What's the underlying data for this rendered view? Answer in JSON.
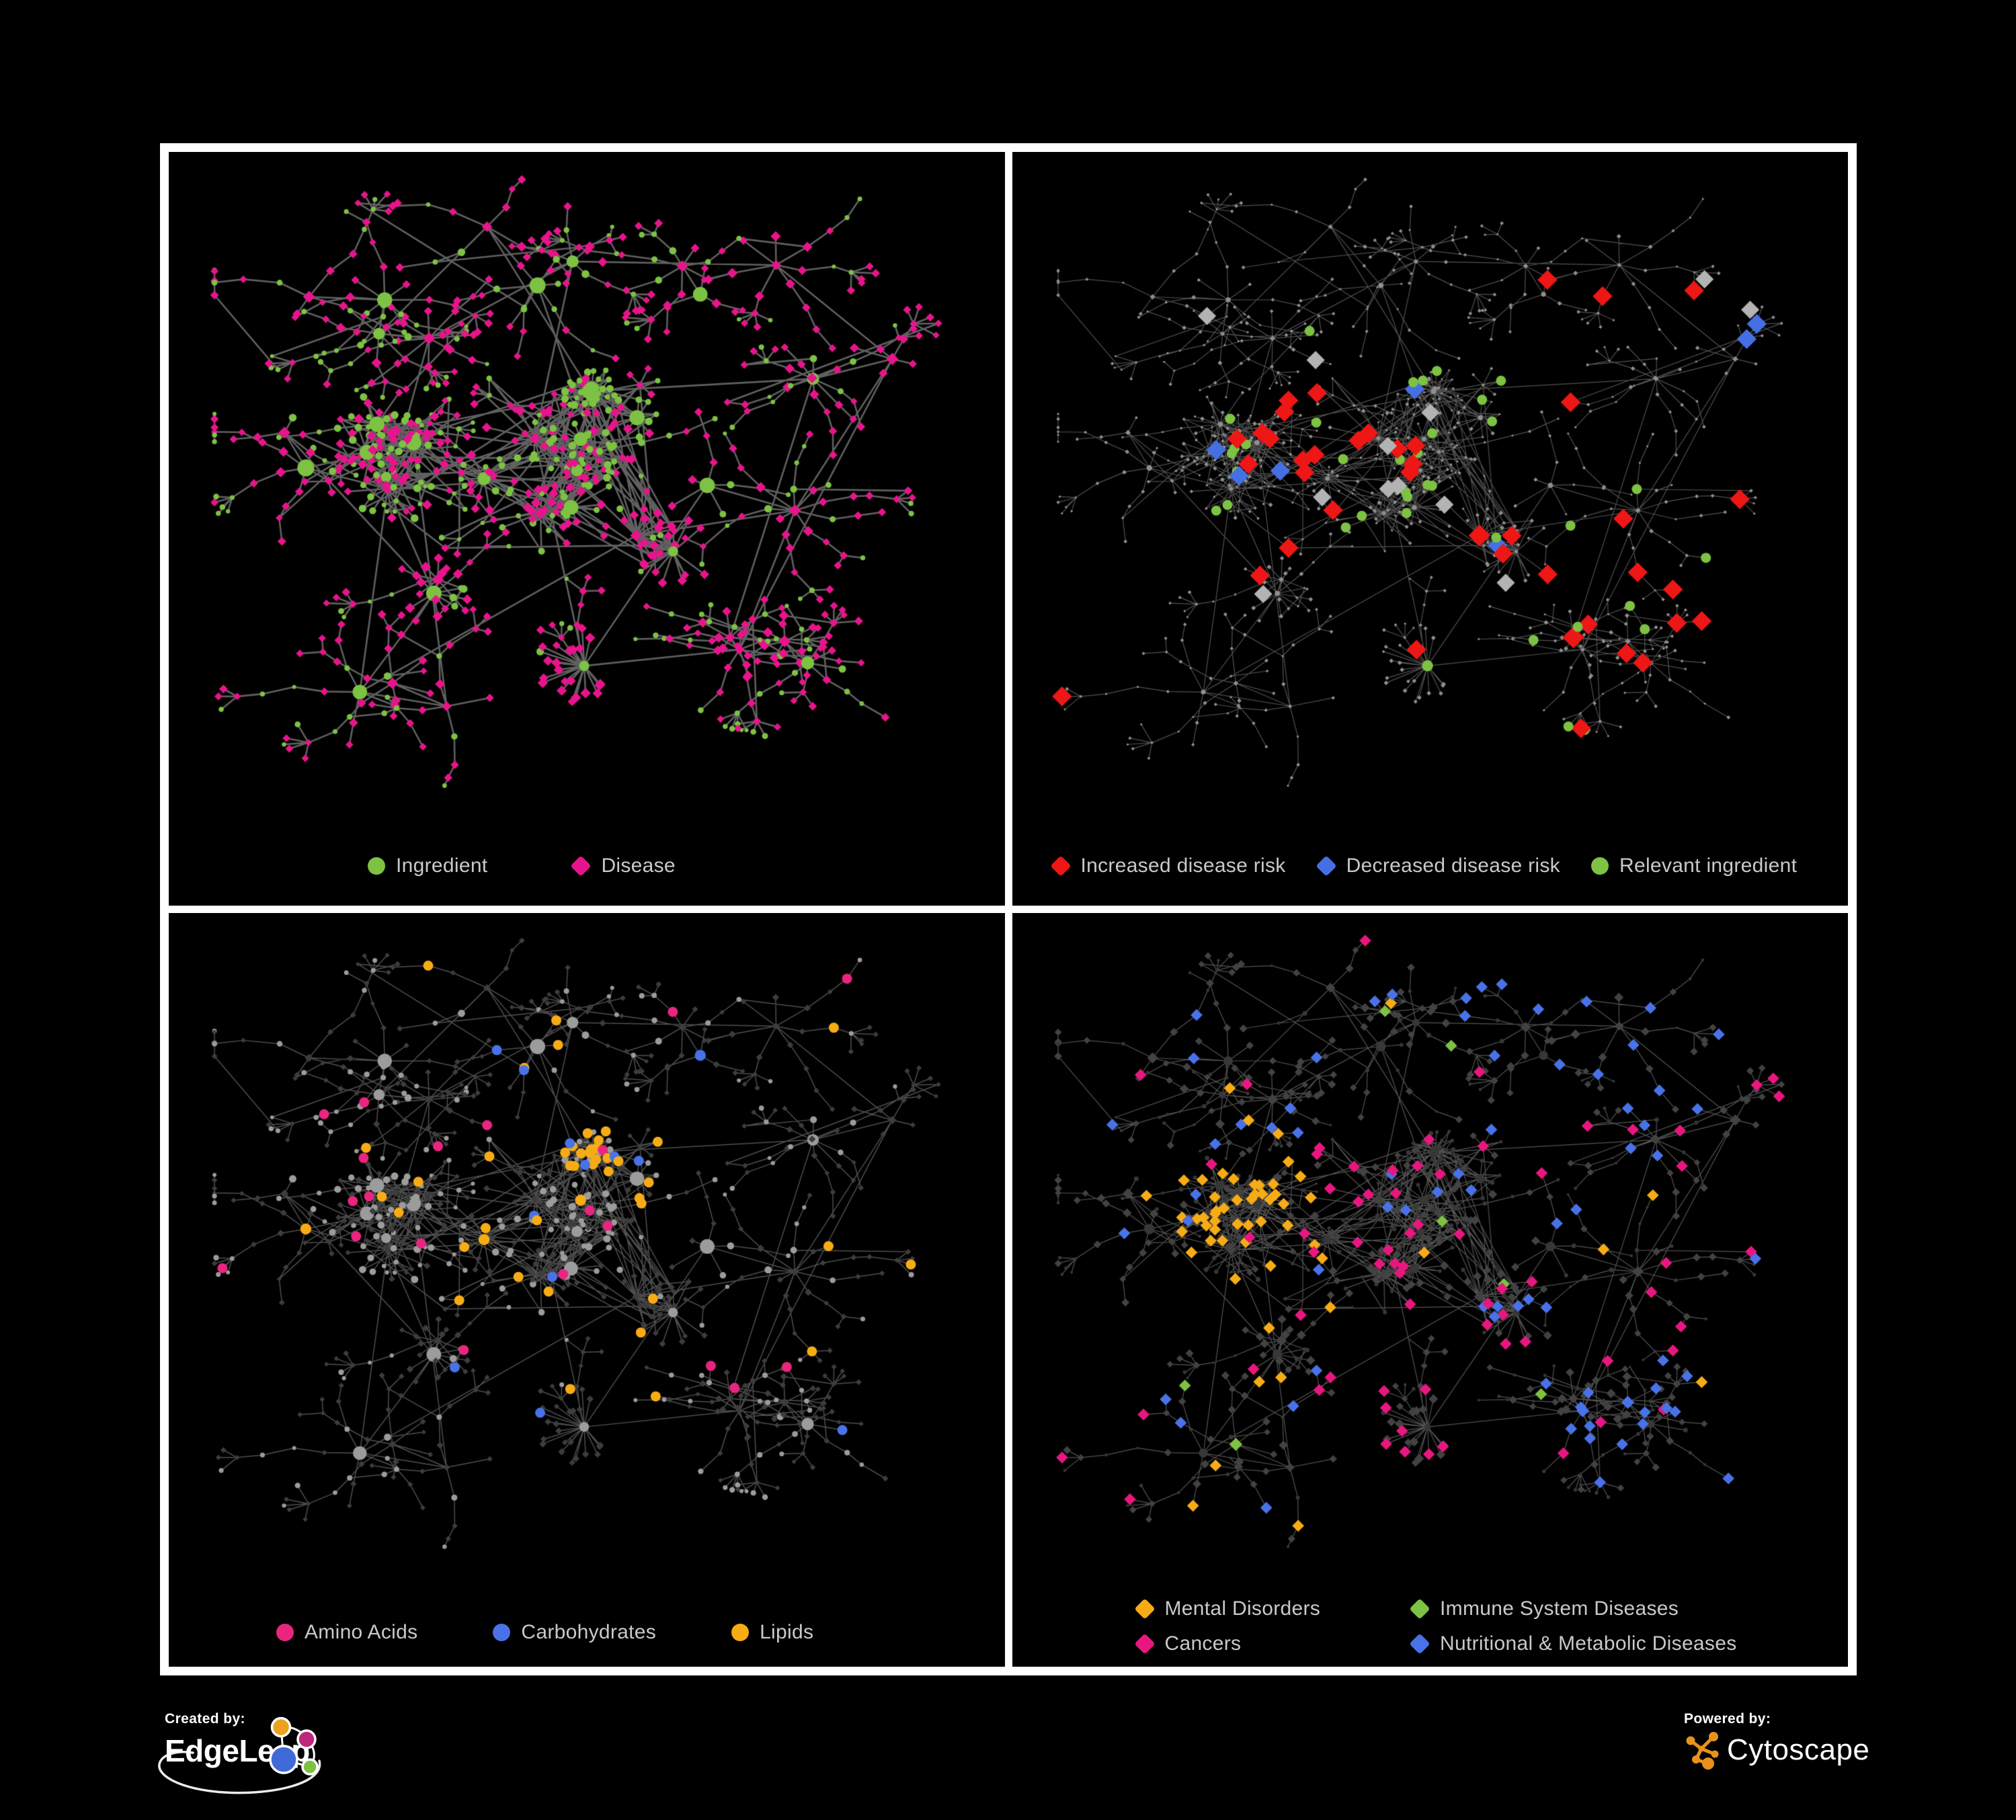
{
  "figure": {
    "background": "#000000",
    "frame_color": "#ffffff",
    "legend_text_color": "#c9c9c9"
  },
  "panels": [
    {
      "id": "ingredient-disease-network",
      "legend": [
        {
          "label": "Ingredient",
          "shape": "circle",
          "color": "#7dc242"
        },
        {
          "label": "Disease",
          "shape": "diamond",
          "color": "#e8148c"
        }
      ],
      "style": {
        "edge_color": "#6a6a6a",
        "edge_width": 2.6,
        "circle_color": "#7dc242",
        "diamond_color": "#e8148c",
        "circle_scale": 1,
        "diamond_scale": 1,
        "highlight_key": null,
        "roles": {}
      }
    },
    {
      "id": "disease-risk-network",
      "legend": [
        {
          "label": "Increased disease risk",
          "shape": "diamond",
          "color": "#ef1616"
        },
        {
          "label": "Decreased disease risk",
          "shape": "diamond",
          "color": "#4570e4"
        },
        {
          "label": "Relevant ingredient",
          "shape": "circle",
          "color": "#7dc242"
        }
      ],
      "style": {
        "edge_color": "#5a5a5a",
        "edge_width": 1.2,
        "circle_color": "#8f8f8f",
        "diamond_color": "#8f8f8f",
        "circle_scale": 0.33,
        "diamond_scale": 0.45,
        "highlight_key": "h2",
        "roles": {
          "up": {
            "color": "#ef1616",
            "shape": "diamond",
            "size": 12.5
          },
          "down": {
            "color": "#4570e4",
            "shape": "diamond",
            "size": 12.5
          },
          "neutral": {
            "color": "#b3b3b3",
            "shape": "diamond",
            "size": 11.5
          },
          "relevant": {
            "color": "#7dc242",
            "shape": "circle",
            "size": 7.5
          }
        }
      }
    },
    {
      "id": "nutrient-class-network",
      "legend": [
        {
          "label": "Amino Acids",
          "shape": "circle",
          "color": "#e92580"
        },
        {
          "label": "Carbohydrates",
          "shape": "circle",
          "color": "#4a72e8"
        },
        {
          "label": "Lipids",
          "shape": "circle",
          "color": "#f7ac16"
        }
      ],
      "style": {
        "edge_color": "#585858",
        "edge_width": 1.5,
        "circle_color": "#9c9c9c",
        "diamond_color": "#3d3d3d",
        "circle_scale": 0.95,
        "diamond_scale": 0.68,
        "highlight_key": "h3",
        "roles": {
          "amino": {
            "color": "#e92580",
            "shape": "circle",
            "size": 7.5
          },
          "carb": {
            "color": "#4a72e8",
            "shape": "circle",
            "size": 7.5
          },
          "lipid": {
            "color": "#f7ac16",
            "shape": "circle",
            "size": 7.5
          }
        }
      }
    },
    {
      "id": "disease-category-network",
      "legend": [
        {
          "label": "Mental Disorders",
          "shape": "diamond",
          "color": "#f7ac16"
        },
        {
          "label": "Immune System Diseases",
          "shape": "diamond",
          "color": "#7dc242"
        },
        {
          "label": "Cancers",
          "shape": "diamond",
          "color": "#e8177f"
        },
        {
          "label": "Nutritional & Metabolic Diseases",
          "shape": "diamond",
          "color": "#4a72e8"
        }
      ],
      "style": {
        "edge_color": "#5d5d5d",
        "edge_width": 1.2,
        "circle_color": "#373737",
        "diamond_color": "#424242",
        "circle_scale": 0.62,
        "diamond_scale": 0.92,
        "highlight_key": "h4",
        "roles": {
          "mental": {
            "color": "#f7ac16",
            "shape": "diamond",
            "size": 7.5
          },
          "immune": {
            "color": "#7dc242",
            "shape": "diamond",
            "size": 7.5
          },
          "cancer": {
            "color": "#e8177f",
            "shape": "diamond",
            "size": 7.5
          },
          "metabolic": {
            "color": "#4a72e8",
            "shape": "diamond",
            "size": 7.5
          }
        }
      }
    }
  ],
  "footer": {
    "created_by_label": "Created by:",
    "created_by_brand": "EdgeLeap",
    "powered_by_label": "Powered by:",
    "powered_by_brand": "Cytoscape"
  },
  "logo_colors": {
    "edgeleap_blue": "#3f6ad8",
    "edgeleap_orange": "#eca21d",
    "edgeleap_magenta": "#c0267c",
    "edgeleap_green": "#7cc141",
    "edgeleap_stroke": "#ffffff",
    "cytoscape_orange": "#e8921c"
  }
}
